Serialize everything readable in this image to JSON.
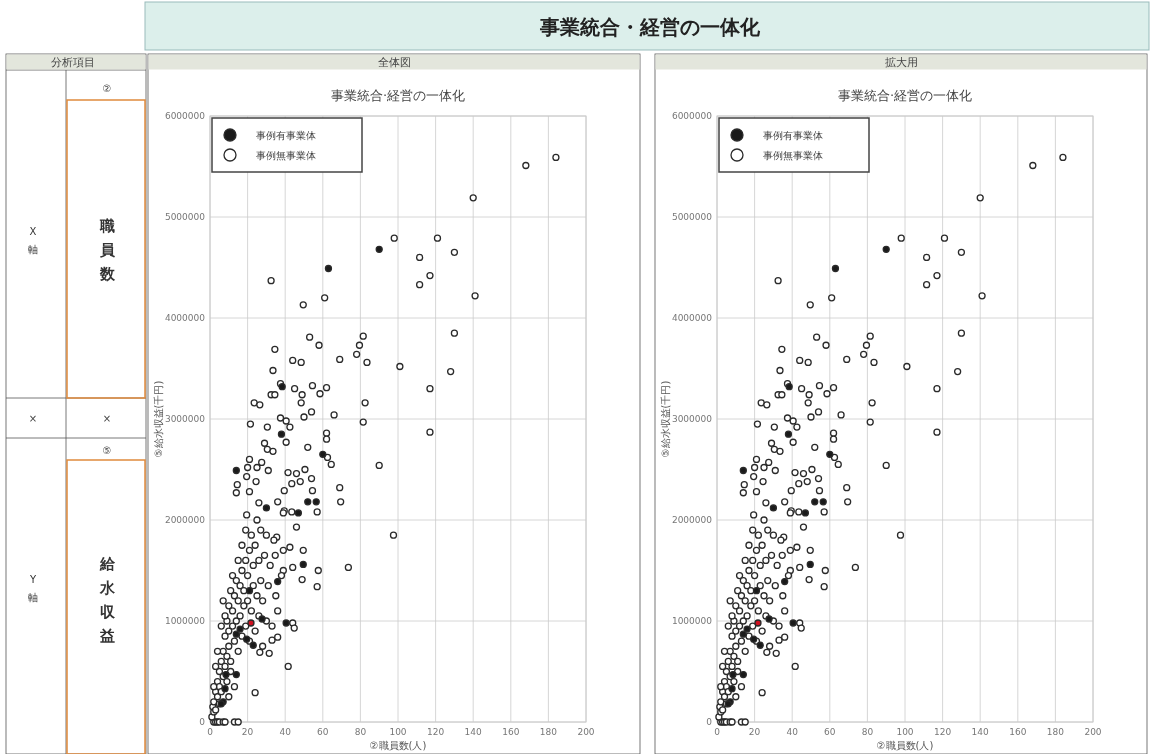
{
  "chart_data": [
    {
      "type": "other",
      "title": "事業統合・経営の一体化",
      "annotations": [
        "分析項目",
        "X軸",
        "②",
        "職員数",
        "×",
        "×",
        "Y軸",
        "⑤",
        "給水収益"
      ]
    },
    {
      "type": "scatter",
      "title": "事業統合·経営の一体化",
      "subtitle": "全体図",
      "xlabel": "②職員数(人)",
      "ylabel": "⑤給水収益(千円)",
      "xlim": [
        0,
        200
      ],
      "xticks": [
        0,
        20,
        40,
        60,
        80,
        100,
        120,
        140,
        160,
        180,
        200
      ],
      "ylim": [
        0,
        6000000
      ],
      "yticks": [
        0,
        1000000,
        2000000,
        3000000,
        4000000,
        5000000,
        6000000
      ],
      "grid": true,
      "legend": "top left",
      "marker": "circle",
      "series": [
        {
          "name": "事例無事業体",
          "color": "#ffffff",
          "x": [
            168,
            184,
            140,
            98,
            121,
            111.5,
            130,
            117,
            32.5,
            49.6,
            61,
            111.5,
            141,
            130,
            53,
            58,
            81.5,
            79.5,
            78,
            83.5,
            69,
            101,
            34.5,
            33.5,
            44,
            48.5,
            54.5,
            62,
            58.5,
            45,
            49,
            48.5,
            32.5,
            34.5,
            23.5,
            26.5,
            37.5,
            82.5,
            81.5,
            117,
            117,
            128,
            66,
            54,
            50,
            37.5,
            40.5,
            42.5,
            21.5,
            30.5,
            62,
            62,
            29,
            40.5,
            30.5,
            33.5,
            52,
            62.5,
            64.5,
            90,
            21,
            27.5,
            20,
            25,
            69,
            69.5,
            14.5,
            19.5,
            24.5,
            31,
            41.5,
            46,
            50.5,
            54,
            54.5,
            14,
            21,
            26,
            36,
            39.5,
            43.5,
            48,
            57,
            39.5,
            19.5,
            43.5,
            97.6,
            73.6,
            57.6,
            57,
            41.6,
            24,
            49.6,
            44,
            49,
            44,
            44.8,
            33,
            36,
            31.5,
            26.5,
            39,
            39,
            42.5,
            34.7,
            35.5,
            46,
            39,
            2,
            3,
            4,
            5,
            7,
            8,
            13,
            15,
            1,
            1.5,
            2,
            2,
            3,
            3,
            4,
            4,
            5,
            5,
            5,
            6,
            6,
            7,
            7,
            8,
            8,
            9,
            9,
            9,
            10,
            10,
            10,
            11,
            11,
            12,
            12,
            12,
            13,
            13,
            14,
            14,
            15,
            15,
            15,
            16,
            16,
            17,
            17,
            17,
            18,
            18,
            19,
            19,
            19,
            20,
            20,
            21,
            21,
            22,
            22,
            23,
            23,
            24,
            24,
            25,
            25,
            26,
            26,
            27,
            27,
            28,
            28,
            29,
            30,
            30,
            31,
            32,
            33,
            34,
            35,
            36,
            38,
            3,
            2,
            6,
            7,
            8,
            4,
            11,
            13,
            10
          ],
          "values": [
            5510000,
            5590000,
            5190000,
            4790000,
            4790000,
            4600000,
            4650000,
            4420000,
            4370000,
            4130000,
            4200000,
            4330000,
            4220000,
            3850000,
            3810000,
            3730000,
            3820000,
            3730000,
            3640000,
            3560000,
            3590000,
            3520000,
            3690000,
            3480000,
            3580000,
            3560000,
            3330000,
            3310000,
            3250000,
            3300000,
            3240000,
            3160000,
            3240000,
            3240000,
            3160000,
            3140000,
            3350000,
            3160000,
            2970000,
            3300000,
            2870000,
            3470000,
            3040000,
            3070000,
            3020000,
            3010000,
            2980000,
            2920000,
            2950000,
            2920000,
            2860000,
            2800000,
            2760000,
            2770000,
            2700000,
            2680000,
            2720000,
            2620000,
            2550000,
            2540000,
            2600000,
            2570000,
            2520000,
            2520000,
            2320000,
            2180000,
            2350000,
            2430000,
            2380000,
            2490000,
            2470000,
            2460000,
            2500000,
            2410000,
            2290000,
            2270000,
            2280000,
            2170000,
            2180000,
            2290000,
            2360000,
            2380000,
            2080000,
            2090000,
            2050000,
            2080000,
            1850000,
            1530000,
            1500000,
            1340000,
            550000,
            290000,
            1700000,
            1530000,
            1410000,
            980000,
            930000,
            810000,
            840000,
            680000,
            690000,
            1700000,
            1500000,
            1730000,
            1650000,
            1830000,
            1930000,
            2070000,
            0,
            0,
            0,
            0,
            0,
            0,
            0,
            0,
            50000,
            150000,
            100000,
            200000,
            300000,
            120000,
            250000,
            400000,
            180000,
            500000,
            350000,
            600000,
            300000,
            450000,
            700000,
            550000,
            850000,
            400000,
            650000,
            1000000,
            750000,
            900000,
            1150000,
            600000,
            1300000,
            950000,
            1100000,
            1450000,
            800000,
            1250000,
            1000000,
            1400000,
            700000,
            1200000,
            1600000,
            1050000,
            1350000,
            850000,
            1500000,
            1750000,
            1150000,
            1300000,
            950000,
            1600000,
            1900000,
            1200000,
            1450000,
            800000,
            1700000,
            1100000,
            1850000,
            1350000,
            1550000,
            900000,
            1750000,
            1250000,
            2000000,
            1050000,
            1600000,
            1400000,
            1900000,
            750000,
            1200000,
            1650000,
            1000000,
            1850000,
            1350000,
            1550000,
            950000,
            1800000,
            1250000,
            1100000,
            1450000,
            550000,
            350000,
            950000,
            1200000,
            1050000,
            700000,
            500000,
            350000,
            250000
          ]
        },
        {
          "name": "事例有事業体",
          "color": "#1a1a1a",
          "x": [
            63,
            90,
            38.4,
            38,
            60,
            14,
            52,
            56.5,
            30,
            47,
            49.6,
            36,
            21,
            40.5,
            27.7,
            16,
            14,
            19.5,
            23,
            8.5,
            14,
            8,
            7,
            6
          ],
          "values": [
            4490000,
            4680000,
            3320000,
            2850000,
            2650000,
            2490000,
            2180000,
            2180000,
            2120000,
            2070000,
            1560000,
            1390000,
            1300000,
            980000,
            1020000,
            920000,
            870000,
            820000,
            760000,
            470000,
            470000,
            330000,
            200000,
            180000
          ]
        },
        {
          "color": "#d01020",
          "x": [
            21.8
          ],
          "values": [
            980000
          ]
        }
      ]
    },
    {
      "type": "scatter",
      "title": "事業統合·経営の一体化",
      "subtitle": "拡大用",
      "xlabel": "②職員数(人)",
      "ylabel": "⑤給水収益(千円)",
      "xlim": [
        0,
        200
      ],
      "xticks": [
        0,
        20,
        40,
        60,
        80,
        100,
        120,
        140,
        160,
        180,
        200
      ],
      "ylim": [
        0,
        6000000
      ],
      "yticks": [
        0,
        1000000,
        2000000,
        3000000,
        4000000,
        5000000,
        6000000
      ],
      "grid": true,
      "legend": "top left",
      "marker": "circle",
      "series": [
        {
          "name": "事例無事業体",
          "color": "#ffffff",
          "x": [
            168,
            184,
            140,
            98,
            121,
            111.5,
            130,
            117,
            32.5,
            49.6,
            61,
            111.5,
            141,
            130,
            53,
            58,
            81.5,
            79.5,
            78,
            83.5,
            69,
            101,
            34.5,
            33.5,
            44,
            48.5,
            54.5,
            62,
            58.5,
            45,
            49,
            48.5,
            32.5,
            34.5,
            23.5,
            26.5,
            37.5,
            82.5,
            81.5,
            117,
            117,
            128,
            66,
            54,
            50,
            37.5,
            40.5,
            42.5,
            21.5,
            30.5,
            62,
            62,
            29,
            40.5,
            30.5,
            33.5,
            52,
            62.5,
            64.5,
            90,
            21,
            27.5,
            20,
            25,
            69,
            69.5,
            14.5,
            19.5,
            24.5,
            31,
            41.5,
            46,
            50.5,
            54,
            54.5,
            14,
            21,
            26,
            36,
            39.5,
            43.5,
            48,
            57,
            39.5,
            19.5,
            43.5,
            97.6,
            73.6,
            57.6,
            57,
            41.6,
            24,
            49.6,
            44,
            49,
            44,
            44.8,
            33,
            36,
            31.5,
            26.5,
            39,
            39,
            42.5,
            34.7,
            35.5,
            46,
            39,
            2,
            3,
            4,
            5,
            7,
            8,
            13,
            15,
            1,
            1.5,
            2,
            2,
            3,
            3,
            4,
            4,
            5,
            5,
            5,
            6,
            6,
            7,
            7,
            8,
            8,
            9,
            9,
            9,
            10,
            10,
            10,
            11,
            11,
            12,
            12,
            12,
            13,
            13,
            14,
            14,
            15,
            15,
            15,
            16,
            16,
            17,
            17,
            17,
            18,
            18,
            19,
            19,
            19,
            20,
            20,
            21,
            21,
            22,
            22,
            23,
            23,
            24,
            24,
            25,
            25,
            26,
            26,
            27,
            27,
            28,
            28,
            29,
            30,
            30,
            31,
            32,
            33,
            34,
            35,
            36,
            38,
            3,
            2,
            6,
            7,
            8,
            4,
            11,
            13,
            10
          ],
          "values": [
            5510000,
            5590000,
            5190000,
            4790000,
            4790000,
            4600000,
            4650000,
            4420000,
            4370000,
            4130000,
            4200000,
            4330000,
            4220000,
            3850000,
            3810000,
            3730000,
            3820000,
            3730000,
            3640000,
            3560000,
            3590000,
            3520000,
            3690000,
            3480000,
            3580000,
            3560000,
            3330000,
            3310000,
            3250000,
            3300000,
            3240000,
            3160000,
            3240000,
            3240000,
            3160000,
            3140000,
            3350000,
            3160000,
            2970000,
            3300000,
            2870000,
            3470000,
            3040000,
            3070000,
            3020000,
            3010000,
            2980000,
            2920000,
            2950000,
            2920000,
            2860000,
            2800000,
            2760000,
            2770000,
            2700000,
            2680000,
            2720000,
            2620000,
            2550000,
            2540000,
            2600000,
            2570000,
            2520000,
            2520000,
            2320000,
            2180000,
            2350000,
            2430000,
            2380000,
            2490000,
            2470000,
            2460000,
            2500000,
            2410000,
            2290000,
            2270000,
            2280000,
            2170000,
            2180000,
            2290000,
            2360000,
            2380000,
            2080000,
            2090000,
            2050000,
            2080000,
            1850000,
            1530000,
            1500000,
            1340000,
            550000,
            290000,
            1700000,
            1530000,
            1410000,
            980000,
            930000,
            810000,
            840000,
            680000,
            690000,
            1700000,
            1500000,
            1730000,
            1650000,
            1830000,
            1930000,
            2070000,
            0,
            0,
            0,
            0,
            0,
            0,
            0,
            0,
            50000,
            150000,
            100000,
            200000,
            300000,
            120000,
            250000,
            400000,
            180000,
            500000,
            350000,
            600000,
            300000,
            450000,
            700000,
            550000,
            850000,
            400000,
            650000,
            1000000,
            750000,
            900000,
            1150000,
            600000,
            1300000,
            950000,
            1100000,
            1450000,
            800000,
            1250000,
            1000000,
            1400000,
            700000,
            1200000,
            1600000,
            1050000,
            1350000,
            850000,
            1500000,
            1750000,
            1150000,
            1300000,
            950000,
            1600000,
            1900000,
            1200000,
            1450000,
            800000,
            1700000,
            1100000,
            1850000,
            1350000,
            1550000,
            900000,
            1750000,
            1250000,
            2000000,
            1050000,
            1600000,
            1400000,
            1900000,
            750000,
            1200000,
            1650000,
            1000000,
            1850000,
            1350000,
            1550000,
            950000,
            1800000,
            1250000,
            1100000,
            1450000,
            550000,
            350000,
            950000,
            1200000,
            1050000,
            700000,
            500000,
            350000,
            250000
          ]
        },
        {
          "name": "事例有事業体",
          "color": "#1a1a1a",
          "x": [
            63,
            90,
            38.4,
            38,
            60,
            14,
            52,
            56.5,
            30,
            47,
            49.6,
            36,
            21,
            40.5,
            27.7,
            16,
            14,
            19.5,
            23,
            8.5,
            14,
            8,
            7,
            6
          ],
          "values": [
            4490000,
            4680000,
            3320000,
            2850000,
            2650000,
            2490000,
            2180000,
            2180000,
            2120000,
            2070000,
            1560000,
            1390000,
            1300000,
            980000,
            1020000,
            920000,
            870000,
            820000,
            760000,
            470000,
            470000,
            330000,
            200000,
            180000
          ]
        },
        {
          "color": "#d01020",
          "x": [
            21.8
          ],
          "values": [
            980000
          ]
        }
      ]
    }
  ]
}
